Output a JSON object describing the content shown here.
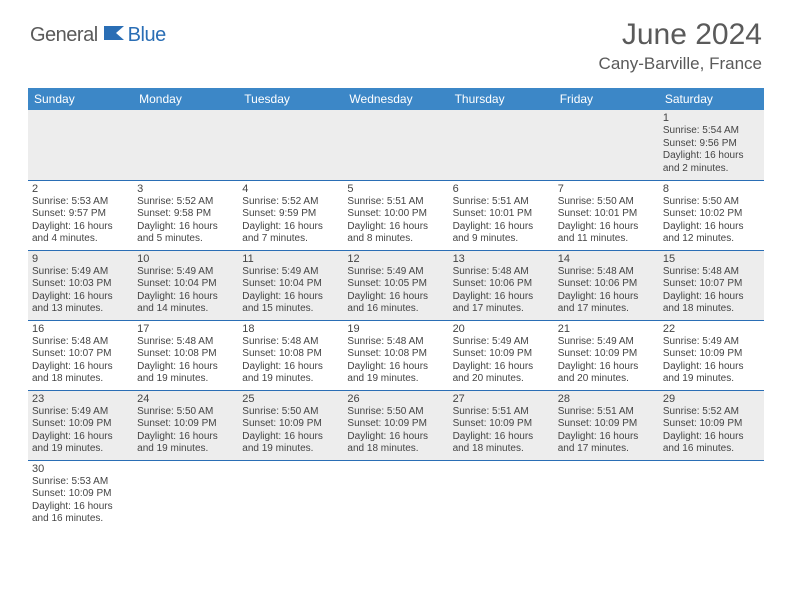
{
  "brand": {
    "part1": "General",
    "part2": "Blue"
  },
  "title": "June 2024",
  "location": "Cany-Barville, France",
  "colors": {
    "header_bg": "#3c87c7",
    "border": "#2a6eb5",
    "alt_row": "#ededed",
    "text": "#444444",
    "brand_gray": "#5a5a5a",
    "brand_blue": "#2a6eb5"
  },
  "day_headers": [
    "Sunday",
    "Monday",
    "Tuesday",
    "Wednesday",
    "Thursday",
    "Friday",
    "Saturday"
  ],
  "weeks": [
    {
      "alt": true,
      "days": [
        null,
        null,
        null,
        null,
        null,
        null,
        {
          "n": "1",
          "sr": "Sunrise: 5:54 AM",
          "ss": "Sunset: 9:56 PM",
          "dl": "Daylight: 16 hours and 2 minutes."
        }
      ]
    },
    {
      "alt": false,
      "days": [
        {
          "n": "2",
          "sr": "Sunrise: 5:53 AM",
          "ss": "Sunset: 9:57 PM",
          "dl": "Daylight: 16 hours and 4 minutes."
        },
        {
          "n": "3",
          "sr": "Sunrise: 5:52 AM",
          "ss": "Sunset: 9:58 PM",
          "dl": "Daylight: 16 hours and 5 minutes."
        },
        {
          "n": "4",
          "sr": "Sunrise: 5:52 AM",
          "ss": "Sunset: 9:59 PM",
          "dl": "Daylight: 16 hours and 7 minutes."
        },
        {
          "n": "5",
          "sr": "Sunrise: 5:51 AM",
          "ss": "Sunset: 10:00 PM",
          "dl": "Daylight: 16 hours and 8 minutes."
        },
        {
          "n": "6",
          "sr": "Sunrise: 5:51 AM",
          "ss": "Sunset: 10:01 PM",
          "dl": "Daylight: 16 hours and 9 minutes."
        },
        {
          "n": "7",
          "sr": "Sunrise: 5:50 AM",
          "ss": "Sunset: 10:01 PM",
          "dl": "Daylight: 16 hours and 11 minutes."
        },
        {
          "n": "8",
          "sr": "Sunrise: 5:50 AM",
          "ss": "Sunset: 10:02 PM",
          "dl": "Daylight: 16 hours and 12 minutes."
        }
      ]
    },
    {
      "alt": true,
      "days": [
        {
          "n": "9",
          "sr": "Sunrise: 5:49 AM",
          "ss": "Sunset: 10:03 PM",
          "dl": "Daylight: 16 hours and 13 minutes."
        },
        {
          "n": "10",
          "sr": "Sunrise: 5:49 AM",
          "ss": "Sunset: 10:04 PM",
          "dl": "Daylight: 16 hours and 14 minutes."
        },
        {
          "n": "11",
          "sr": "Sunrise: 5:49 AM",
          "ss": "Sunset: 10:04 PM",
          "dl": "Daylight: 16 hours and 15 minutes."
        },
        {
          "n": "12",
          "sr": "Sunrise: 5:49 AM",
          "ss": "Sunset: 10:05 PM",
          "dl": "Daylight: 16 hours and 16 minutes."
        },
        {
          "n": "13",
          "sr": "Sunrise: 5:48 AM",
          "ss": "Sunset: 10:06 PM",
          "dl": "Daylight: 16 hours and 17 minutes."
        },
        {
          "n": "14",
          "sr": "Sunrise: 5:48 AM",
          "ss": "Sunset: 10:06 PM",
          "dl": "Daylight: 16 hours and 17 minutes."
        },
        {
          "n": "15",
          "sr": "Sunrise: 5:48 AM",
          "ss": "Sunset: 10:07 PM",
          "dl": "Daylight: 16 hours and 18 minutes."
        }
      ]
    },
    {
      "alt": false,
      "days": [
        {
          "n": "16",
          "sr": "Sunrise: 5:48 AM",
          "ss": "Sunset: 10:07 PM",
          "dl": "Daylight: 16 hours and 18 minutes."
        },
        {
          "n": "17",
          "sr": "Sunrise: 5:48 AM",
          "ss": "Sunset: 10:08 PM",
          "dl": "Daylight: 16 hours and 19 minutes."
        },
        {
          "n": "18",
          "sr": "Sunrise: 5:48 AM",
          "ss": "Sunset: 10:08 PM",
          "dl": "Daylight: 16 hours and 19 minutes."
        },
        {
          "n": "19",
          "sr": "Sunrise: 5:48 AM",
          "ss": "Sunset: 10:08 PM",
          "dl": "Daylight: 16 hours and 19 minutes."
        },
        {
          "n": "20",
          "sr": "Sunrise: 5:49 AM",
          "ss": "Sunset: 10:09 PM",
          "dl": "Daylight: 16 hours and 20 minutes."
        },
        {
          "n": "21",
          "sr": "Sunrise: 5:49 AM",
          "ss": "Sunset: 10:09 PM",
          "dl": "Daylight: 16 hours and 20 minutes."
        },
        {
          "n": "22",
          "sr": "Sunrise: 5:49 AM",
          "ss": "Sunset: 10:09 PM",
          "dl": "Daylight: 16 hours and 19 minutes."
        }
      ]
    },
    {
      "alt": true,
      "days": [
        {
          "n": "23",
          "sr": "Sunrise: 5:49 AM",
          "ss": "Sunset: 10:09 PM",
          "dl": "Daylight: 16 hours and 19 minutes."
        },
        {
          "n": "24",
          "sr": "Sunrise: 5:50 AM",
          "ss": "Sunset: 10:09 PM",
          "dl": "Daylight: 16 hours and 19 minutes."
        },
        {
          "n": "25",
          "sr": "Sunrise: 5:50 AM",
          "ss": "Sunset: 10:09 PM",
          "dl": "Daylight: 16 hours and 19 minutes."
        },
        {
          "n": "26",
          "sr": "Sunrise: 5:50 AM",
          "ss": "Sunset: 10:09 PM",
          "dl": "Daylight: 16 hours and 18 minutes."
        },
        {
          "n": "27",
          "sr": "Sunrise: 5:51 AM",
          "ss": "Sunset: 10:09 PM",
          "dl": "Daylight: 16 hours and 18 minutes."
        },
        {
          "n": "28",
          "sr": "Sunrise: 5:51 AM",
          "ss": "Sunset: 10:09 PM",
          "dl": "Daylight: 16 hours and 17 minutes."
        },
        {
          "n": "29",
          "sr": "Sunrise: 5:52 AM",
          "ss": "Sunset: 10:09 PM",
          "dl": "Daylight: 16 hours and 16 minutes."
        }
      ]
    },
    {
      "alt": false,
      "last": true,
      "days": [
        {
          "n": "30",
          "sr": "Sunrise: 5:53 AM",
          "ss": "Sunset: 10:09 PM",
          "dl": "Daylight: 16 hours and 16 minutes."
        },
        null,
        null,
        null,
        null,
        null,
        null
      ]
    }
  ]
}
